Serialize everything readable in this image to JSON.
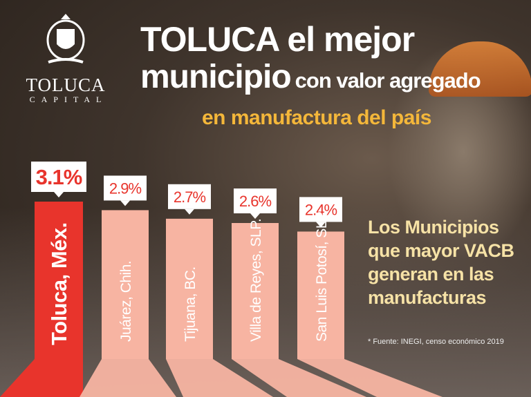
{
  "logo": {
    "main": "TOLUCA",
    "sub": "CAPITAL"
  },
  "headline": {
    "line1": "TOLUCA el mejor",
    "line2_big": "municipio",
    "line2_small": "con valor agregado",
    "line3": "en manufactura del país"
  },
  "side_text": [
    "Los Municipios",
    "que mayor VACB",
    "generan en las",
    "manufacturas"
  ],
  "footnote": "* Fuente: INEGI, censo económico 2019",
  "colors": {
    "highlight": "#e8342c",
    "bar": "#f7b4a2",
    "accent": "#f4b73a"
  },
  "chart_data": {
    "type": "bar",
    "title": "Los Municipios que mayor VACB generan en las manufacturas",
    "categories": [
      "Toluca, Méx.",
      "Juárez, Chih.",
      "Tijuana, BC.",
      "Villa de Reyes, SLP.",
      "San Luis Potosí, SLP."
    ],
    "values": [
      3.1,
      2.9,
      2.7,
      2.6,
      2.4
    ],
    "labels": [
      "3.1%",
      "2.9%",
      "2.7%",
      "2.6%",
      "2.4%"
    ],
    "unit": "%",
    "highlight_index": 0
  }
}
